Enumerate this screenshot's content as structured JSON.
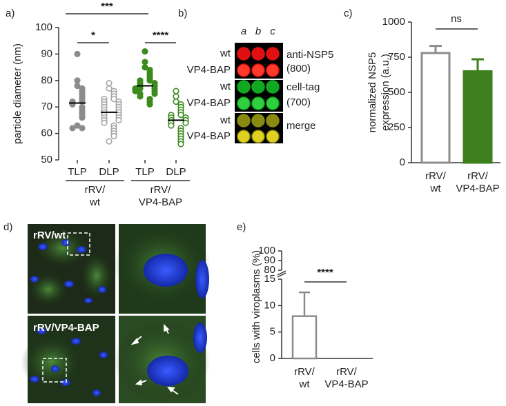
{
  "chart_data": [
    {
      "type": "dot-plot",
      "panel": "a)",
      "ylabel": "particle diameter (nm)",
      "ylim": [
        50,
        100
      ],
      "yticks": [
        50,
        60,
        70,
        80,
        90,
        100
      ],
      "groups": [
        {
          "category": "TLP",
          "color": "#8c8c8c",
          "filled": true,
          "mean": 71.5,
          "values": [
            90,
            80,
            78,
            77,
            76,
            75,
            74,
            73,
            72,
            72,
            71,
            70,
            69,
            68,
            67,
            66,
            63,
            62,
            62
          ]
        },
        {
          "category": "DLP",
          "color": "#a6a6a6",
          "filled": false,
          "mean": 68,
          "values": [
            79,
            77,
            76,
            75,
            74,
            73,
            73,
            72,
            72,
            71,
            71,
            70,
            70,
            69,
            69,
            68,
            68,
            67,
            67,
            66,
            66,
            65,
            65,
            64,
            63,
            62,
            61,
            60,
            59,
            57
          ]
        },
        {
          "category": "TLP",
          "color": "#3d8b1f",
          "filled": true,
          "mean": 78,
          "values": [
            91,
            87,
            85,
            84,
            83,
            82,
            81,
            80,
            80,
            79,
            79,
            78,
            78,
            77,
            77,
            77,
            76,
            76,
            75,
            75,
            74,
            73,
            72,
            71
          ]
        },
        {
          "category": "DLP",
          "color": "#3d8b1f",
          "filled": false,
          "mean": 65,
          "values": [
            76,
            74,
            72,
            71,
            70,
            69,
            68,
            67,
            67,
            66,
            66,
            65,
            65,
            64,
            64,
            63,
            62,
            61,
            60,
            59,
            58,
            57,
            56
          ]
        }
      ],
      "group_labels": [
        [
          "rRV/",
          "wt"
        ],
        [
          "rRV/",
          "VP4-BAP"
        ]
      ],
      "significance": [
        "***",
        "*",
        "****"
      ]
    },
    {
      "type": "bar",
      "panel": "c)",
      "ylabel": [
        "normalized NSP5",
        "expression (a.u.)"
      ],
      "categories": [
        [
          "rRV/",
          "wt"
        ],
        [
          "rRV/",
          "VP4-BAP"
        ]
      ],
      "values": [
        780,
        650
      ],
      "errors": [
        50,
        85
      ],
      "colors": [
        "#ffffff",
        "#3d7f1c"
      ],
      "edgecolors": [
        "#8c8c8c",
        "#3d7f1c"
      ],
      "ylim": [
        0,
        1000
      ],
      "yticks": [
        0,
        250,
        500,
        750,
        1000
      ],
      "significance": "ns"
    },
    {
      "type": "broken-bar",
      "panel": "e)",
      "ylabel": "cells with viroplasms (%)",
      "categories": [
        [
          "rRV/",
          "wt"
        ],
        [
          "rRV/",
          "VP4-BAP"
        ]
      ],
      "values": [
        8,
        0
      ],
      "errors": [
        4.5,
        null
      ],
      "colors": [
        "#ffffff",
        "#ffffff"
      ],
      "edgecolors": [
        "#8c8c8c",
        "#8c8c8c"
      ],
      "ylim": [
        0,
        15
      ],
      "yticks": [
        0,
        5,
        10,
        15
      ],
      "upper_ylim": [
        80,
        100
      ],
      "upper_yticks": [
        80,
        90,
        100
      ],
      "significance": "****"
    }
  ],
  "blot": {
    "panel": "b)",
    "columns": [
      "a",
      "b",
      "c"
    ],
    "rows": [
      "wt",
      "VP4-BAP",
      "wt",
      "VP4-BAP",
      "wt",
      "VP4-BAP"
    ],
    "channels": [
      [
        "anti-NSP5",
        "(800)"
      ],
      [
        "cell-tag",
        "(700)"
      ],
      [
        "merge"
      ]
    ]
  },
  "micrographs": {
    "panel": "d)",
    "labels": [
      "rRV/wt",
      "rRV/VP4-BAP"
    ]
  }
}
